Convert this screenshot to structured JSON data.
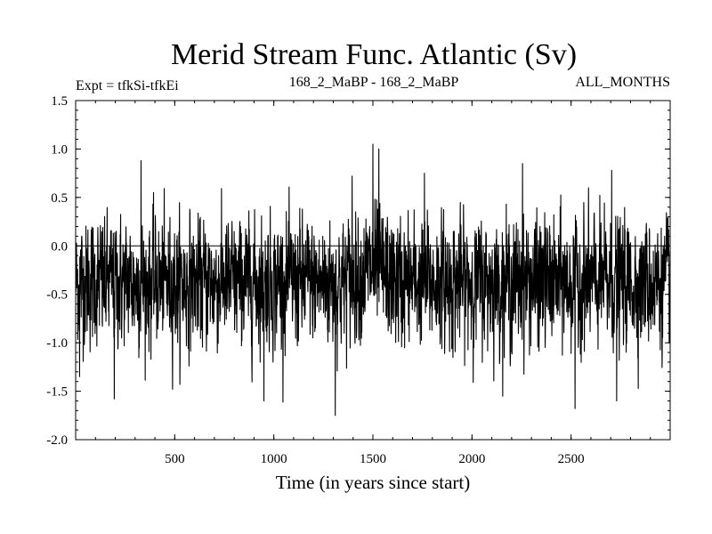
{
  "chart_data": {
    "type": "line",
    "title": "Merid Stream Func. Atlantic (Sv)",
    "subtitle_left": "Expt = tfkSi-tfkEi",
    "subtitle_center": "168_2_MaBP - 168_2_MaBP",
    "subtitle_right": "ALL_MONTHS",
    "xlabel": "Time (in years since start)",
    "ylabel": "",
    "xlim": [
      0,
      3000
    ],
    "ylim": [
      -2.0,
      1.5
    ],
    "xticks": [
      500,
      1000,
      1500,
      2000,
      2500
    ],
    "xtick_labels": [
      "500",
      "1000",
      "1500",
      "2000",
      "2500"
    ],
    "yticks": [
      -2.0,
      -1.5,
      -1.0,
      -0.5,
      0.0,
      0.5,
      1.0,
      1.5
    ],
    "ytick_labels": [
      "-2.0",
      "-1.5",
      "-1.0",
      "-0.5",
      "0.0",
      "0.5",
      "1.0",
      "1.5"
    ],
    "reference_line": 0.0,
    "series_color": "#000000",
    "series": [
      {
        "mean": -0.38,
        "std": 0.32,
        "n_points": 3000,
        "x_start": 1,
        "x_step": 1,
        "notable_extremes": [
          {
            "x": 20,
            "y": -1.35
          },
          {
            "x": 195,
            "y": -1.58
          },
          {
            "x": 330,
            "y": 0.88
          },
          {
            "x": 950,
            "y": -1.6
          },
          {
            "x": 1310,
            "y": -1.75
          },
          {
            "x": 1395,
            "y": 0.72
          },
          {
            "x": 1500,
            "y": 1.05
          },
          {
            "x": 1530,
            "y": 1.0
          },
          {
            "x": 1760,
            "y": 0.75
          },
          {
            "x": 2255,
            "y": 0.85
          },
          {
            "x": 2520,
            "y": -1.68
          },
          {
            "x": 2730,
            "y": -1.6
          },
          {
            "x": 2705,
            "y": 0.78
          }
        ]
      }
    ]
  }
}
